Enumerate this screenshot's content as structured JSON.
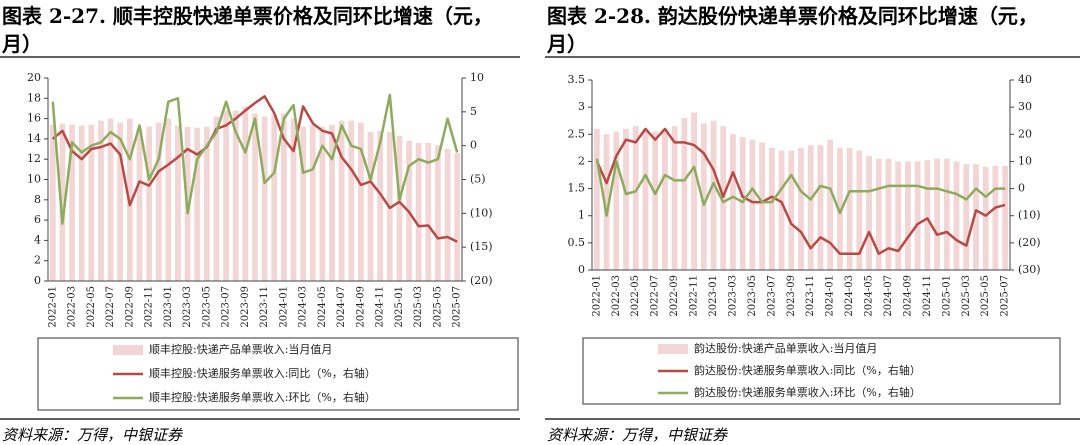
{
  "chart_data": [
    {
      "type": "bar_line",
      "title": "图表 2-27. 顺丰控股快递单票价格及同环比增速（元，月）",
      "source": "资料来源：万得，中银证券",
      "categories": [
        "2022-01",
        null,
        "2022-03",
        null,
        "2022-05",
        null,
        "2022-07",
        null,
        "2022-09",
        null,
        "2022-11",
        null,
        "2023-01",
        null,
        "2023-03",
        null,
        "2023-05",
        null,
        "2023-07",
        null,
        "2023-09",
        null,
        "2023-11",
        null,
        "2024-01",
        null,
        "2024-03",
        null,
        "2024-05",
        null,
        "2024-07",
        null,
        "2024-09",
        null,
        "2024-11",
        null,
        "2025-01",
        null,
        "2025-03",
        null,
        "2025-05",
        null,
        "2025-07"
      ],
      "ylim": [
        0,
        20
      ],
      "yticks": [
        0,
        2,
        4,
        6,
        8,
        10,
        12,
        14,
        16,
        18,
        20
      ],
      "y2lim": [
        -20,
        10
      ],
      "y2ticks": [
        10,
        5,
        0,
        {
          "value": -5,
          "label": "(5)"
        },
        {
          "value": -10,
          "label": "(10)"
        },
        {
          "value": -15,
          "label": "(15)"
        },
        {
          "value": -20,
          "label": "(20)"
        }
      ],
      "series": [
        {
          "name": "顺丰控股:快递产品单票收入:当月值月",
          "kind": "bar",
          "color": "#f2d6d6",
          "values": [
            15.4,
            15.5,
            15.4,
            15.3,
            15.4,
            15.8,
            16.0,
            15.6,
            16.0,
            15.0,
            15.2,
            15.6,
            16.0,
            15.3,
            15.2,
            15.1,
            15.2,
            16.2,
            16.8,
            16.8,
            17.2,
            16.5,
            16.2,
            16.4,
            16.5,
            16.0,
            15.2,
            15.4,
            15.2,
            15.4,
            15.8,
            15.8,
            15.6,
            14.7,
            14.8,
            14.7,
            14.3,
            13.8,
            13.6,
            13.6,
            13.4,
            13.0,
            12.6
          ]
        },
        {
          "name": "顺丰控股:快递服务单票收入:同比（%，右轴）",
          "kind": "line",
          "axis": "y2",
          "color": "#b84a45",
          "values": [
            1,
            2.2,
            -0.8,
            -2,
            -0.5,
            -0.2,
            0.3,
            -1.3,
            -8.8,
            -5.3,
            -5.9,
            -3.8,
            -2.8,
            -1.7,
            -0.5,
            -1.3,
            -0.2,
            2.5,
            3,
            4,
            5.2,
            6.3,
            7.3,
            4.8,
            1,
            -0.8,
            5.8,
            3.3,
            2.2,
            1.8,
            -1.7,
            -3.5,
            -5.8,
            -5.3,
            -7.1,
            -9.2,
            -8.3,
            -9.8,
            -11.9,
            -11.8,
            -13.7,
            -13.5,
            -14.2
          ]
        },
        {
          "name": "顺丰控股:快递服务单票收入:环比（%，右轴）",
          "kind": "line",
          "axis": "y2",
          "color": "#8cab5c",
          "values": [
            6.5,
            -11.5,
            0.5,
            -1,
            0,
            0.5,
            2,
            1,
            -2,
            3,
            -5,
            -2,
            6.5,
            7,
            -10,
            -2,
            0,
            2,
            6.5,
            2,
            -1,
            4,
            -5.5,
            -4,
            4,
            6,
            -4,
            -3.5,
            0,
            -2,
            3,
            0,
            -0.5,
            -5,
            0.5,
            7.5,
            -8,
            -3,
            -2,
            -2.5,
            -2,
            4,
            -1
          ]
        }
      ]
    },
    {
      "type": "bar_line",
      "title": "图表 2-28. 韵达股份快递单票价格及同环比增速（元，月）",
      "source": "资料来源：万得，中银证券",
      "categories": [
        "2022-01",
        null,
        "2022-03",
        null,
        "2022-05",
        null,
        "2022-07",
        null,
        "2022-09",
        null,
        "2022-11",
        null,
        "2023-01",
        null,
        "2023-03",
        null,
        "2023-05",
        null,
        "2023-07",
        null,
        "2023-09",
        null,
        "2023-11",
        null,
        "2024-01",
        null,
        "2024-03",
        null,
        "2024-05",
        null,
        "2024-07",
        null,
        "2024-09",
        null,
        "2024-11",
        null,
        "2025-01",
        null,
        "2025-03",
        null,
        "2025-05",
        null,
        "2025-07"
      ],
      "ylim": [
        0,
        3.5
      ],
      "yticks": [
        0,
        0.5,
        1,
        1.5,
        2,
        2.5,
        3,
        3.5
      ],
      "y2lim": [
        -30,
        40
      ],
      "y2ticks": [
        40,
        30,
        20,
        10,
        0,
        {
          "value": -10,
          "label": "(10)"
        },
        {
          "value": -20,
          "label": "(20)"
        },
        {
          "value": -30,
          "label": "(30)"
        }
      ],
      "series": [
        {
          "name": "韵达股份:快递产品单票收入:当月值月",
          "kind": "bar",
          "color": "#f2d6d6",
          "values": [
            2.6,
            2.5,
            2.55,
            2.6,
            2.65,
            2.6,
            2.55,
            2.6,
            2.65,
            2.8,
            2.9,
            2.7,
            2.75,
            2.65,
            2.5,
            2.45,
            2.4,
            2.35,
            2.25,
            2.2,
            2.2,
            2.25,
            2.3,
            2.3,
            2.4,
            2.25,
            2.25,
            2.2,
            2.1,
            2.05,
            2.05,
            2.0,
            2.0,
            2.0,
            2.02,
            2.05,
            2.05,
            2.0,
            1.95,
            1.95,
            1.9,
            1.92,
            1.92
          ]
        },
        {
          "name": "韵达股份:快递服务单票收入:同比（%，右轴）",
          "kind": "line",
          "axis": "y2",
          "color": "#b84a45",
          "values": [
            10,
            2,
            12,
            18,
            17,
            22,
            18,
            22,
            17,
            17,
            16,
            13,
            7,
            -3,
            6,
            -3,
            -5,
            -5,
            -3,
            -5,
            -13,
            -16,
            -22,
            -18,
            -20,
            -24,
            -24,
            -24,
            -16,
            -24,
            -22,
            -23,
            -18,
            -13,
            -11,
            -17,
            -16,
            -19,
            -21,
            -8,
            -10,
            -7,
            -6
          ]
        },
        {
          "name": "韵达股份:快递服务单票收入:环比（%，右轴）",
          "kind": "line",
          "axis": "y2",
          "color": "#8cab5c",
          "values": [
            11,
            -10,
            10,
            -2,
            -1,
            5,
            -2,
            5,
            3,
            3,
            8,
            -6,
            2,
            -5,
            -3,
            -5,
            0,
            -5,
            -5,
            0,
            5,
            -1,
            -4,
            1,
            0,
            -9,
            -1,
            -1,
            -1,
            0,
            1,
            1,
            1,
            1,
            0,
            0,
            -1,
            -2,
            -4,
            0,
            -3,
            0,
            0
          ]
        }
      ]
    }
  ]
}
